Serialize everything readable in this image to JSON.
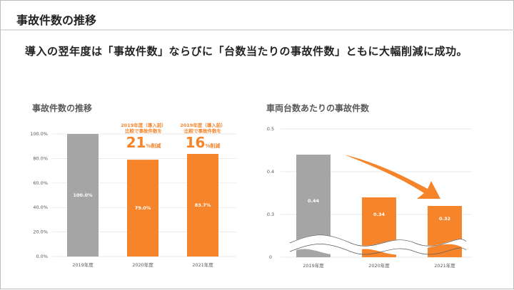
{
  "header": {
    "title": "事故件数の推移"
  },
  "subtitle": "導入の翌年度は「事故件数」ならびに「台数当たりの事故件数」ともに大幅削減に成功。",
  "colors": {
    "gray": "#a5a5a5",
    "orange": "#f5842a"
  },
  "notes": [
    {
      "line1": "2019年度（導入前）",
      "line2": "比較で事故件数を",
      "value": "21",
      "unit": "%削減"
    },
    {
      "line1": "2019年度（導入前）",
      "line2": "比較で事故件数を",
      "value": "16",
      "unit": "%削減"
    }
  ],
  "chart_data": [
    {
      "type": "bar",
      "title": "事故件数の推移",
      "categories": [
        "2019年度",
        "2020年度",
        "2021年度"
      ],
      "values": [
        100.0,
        79.0,
        83.7
      ],
      "labels": [
        "100.0%",
        "79.0%",
        "83.7%"
      ],
      "ylim": [
        0,
        100
      ],
      "yticks": [
        "0.0%",
        "20.0%",
        "40.0%",
        "60.0%",
        "80.0%",
        "100.0%"
      ],
      "grid": true,
      "bar_colors": [
        "#a5a5a5",
        "#f5842a",
        "#f5842a"
      ]
    },
    {
      "type": "bar",
      "title": "車両台数あたりの事故件数",
      "categories": [
        "2019年度",
        "2020年度",
        "2021年度"
      ],
      "values": [
        0.44,
        0.34,
        0.32
      ],
      "labels": [
        "0.44",
        "0.34",
        "0.32"
      ],
      "yticks": [
        "0",
        "0.3",
        "0.4",
        "0.5"
      ],
      "axis_break": true,
      "grid": true,
      "bar_colors": [
        "#a5a5a5",
        "#f5842a",
        "#f5842a"
      ]
    }
  ]
}
